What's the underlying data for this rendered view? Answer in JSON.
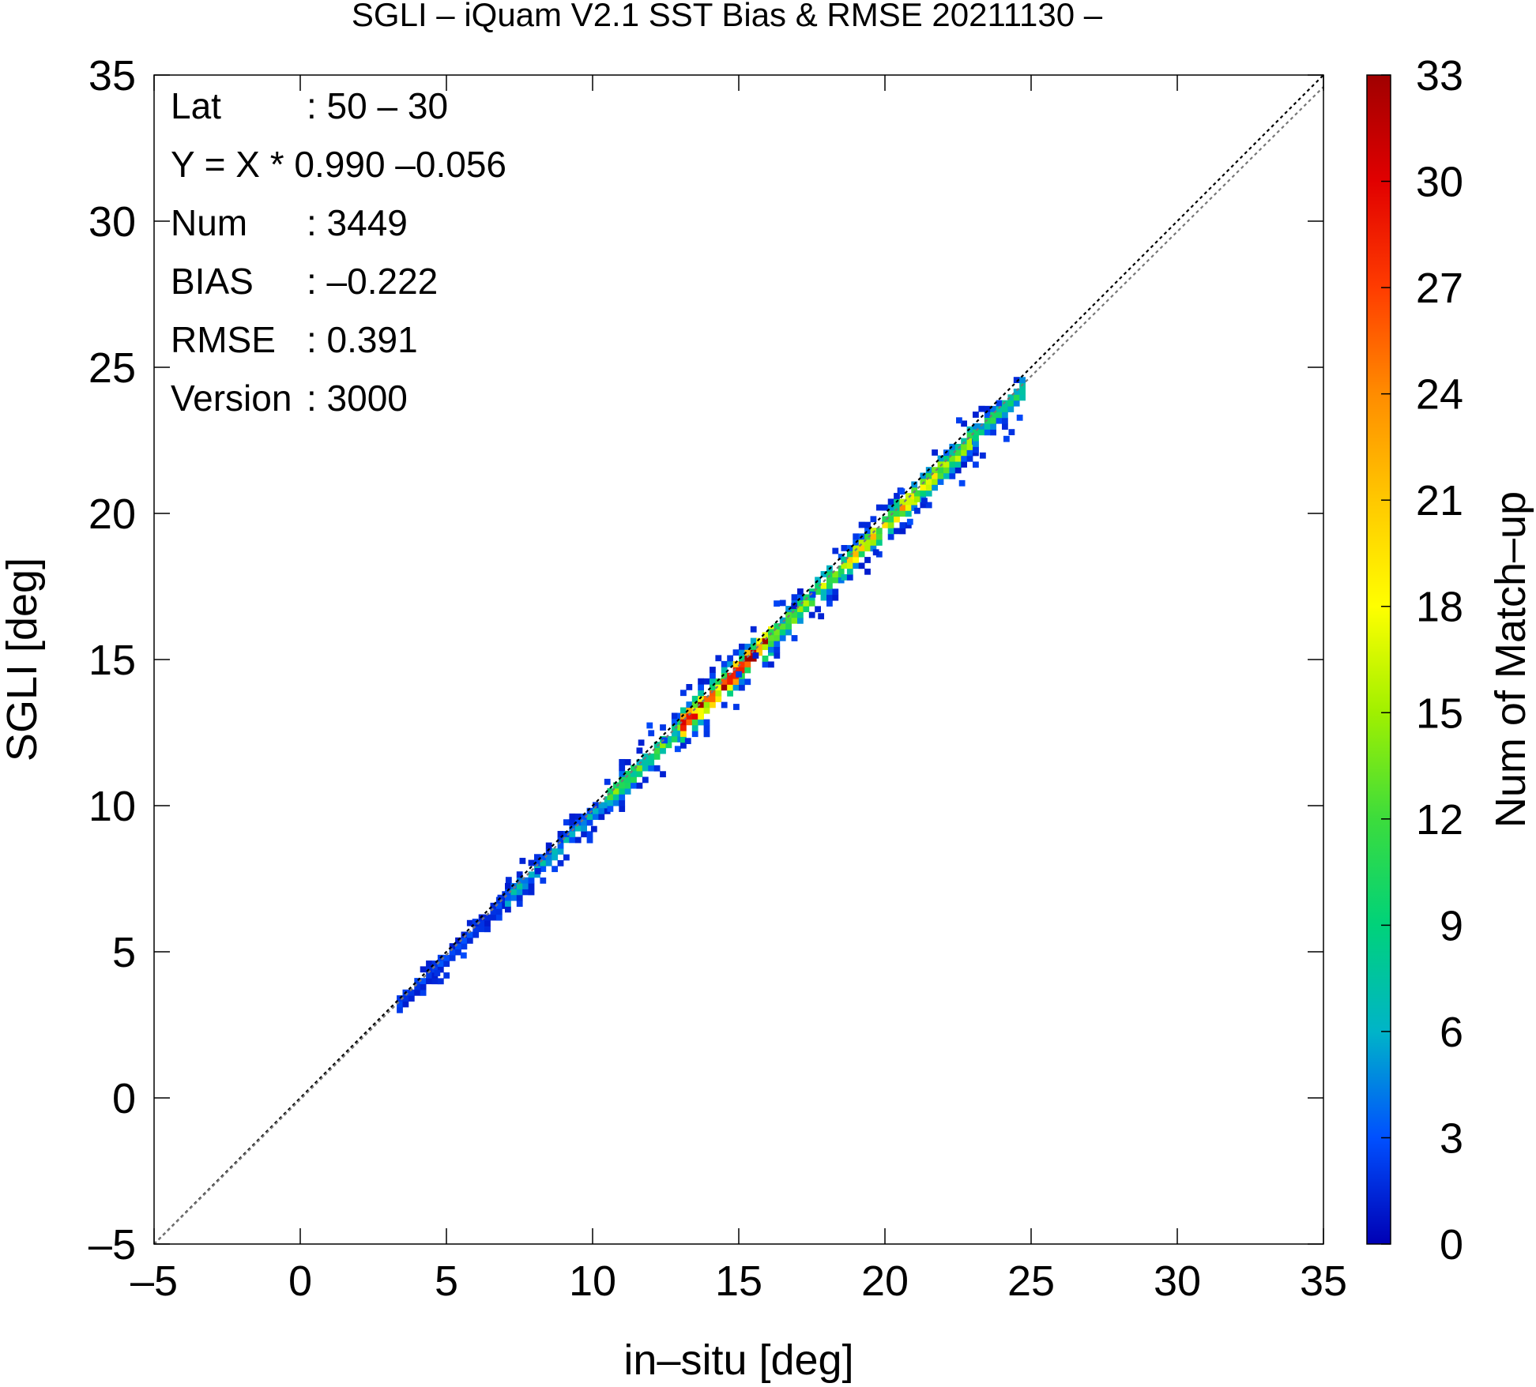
{
  "chart_data": {
    "type": "heatmap",
    "title": "SGLI – iQuam V2.1 SST Bias & RMSE 20211130 –",
    "xlabel": "in–situ [deg]",
    "ylabel": "SGLI [deg]",
    "xlim": [
      -5,
      35
    ],
    "ylim": [
      -5,
      35
    ],
    "xticks": [
      "–5",
      "0",
      "5",
      "10",
      "15",
      "20",
      "25",
      "30",
      "35"
    ],
    "yticks": [
      "–5",
      "0",
      "5",
      "10",
      "15",
      "20",
      "25",
      "30",
      "35"
    ],
    "xtick_values": [
      -5,
      0,
      5,
      10,
      15,
      20,
      25,
      30,
      35
    ],
    "ytick_values": [
      -5,
      0,
      5,
      10,
      15,
      20,
      25,
      30,
      35
    ],
    "grid": false,
    "colorbar": {
      "label": "Num of Match–up",
      "range": [
        0,
        33
      ],
      "tick_values": [
        0,
        3,
        6,
        9,
        12,
        15,
        18,
        21,
        24,
        27,
        30,
        33
      ],
      "tick_labels": [
        "0",
        "3",
        "6",
        "9",
        "12",
        "15",
        "18",
        "21",
        "24",
        "27",
        "30",
        "33"
      ],
      "colormap": [
        "#0000b4",
        "#0050ff",
        "#00b4c8",
        "#00d27a",
        "#3cdc3c",
        "#a0f000",
        "#ffff00",
        "#ffc800",
        "#ff8c00",
        "#ff3c00",
        "#e10000",
        "#a00000"
      ]
    },
    "reference_lines": [
      {
        "name": "1:1 line",
        "slope": 1.0,
        "intercept": 0.0,
        "style": "dotted",
        "color": "#000000"
      },
      {
        "name": "regression",
        "slope": 0.99,
        "intercept": -0.056,
        "style": "dotted",
        "color": "#777777"
      }
    ],
    "density_segments": [
      {
        "x0": 3.3,
        "x1": 7.0,
        "peak": 3,
        "spread": 0.25
      },
      {
        "x0": 7.0,
        "x1": 10.5,
        "peak": 7,
        "spread": 0.35
      },
      {
        "x0": 10.5,
        "x1": 13.0,
        "peak": 13,
        "spread": 0.45
      },
      {
        "x0": 13.0,
        "x1": 16.0,
        "peak": 33,
        "spread": 0.5
      },
      {
        "x0": 16.0,
        "x1": 18.5,
        "peak": 16,
        "spread": 0.45
      },
      {
        "x0": 18.5,
        "x1": 21.0,
        "peak": 21,
        "spread": 0.45
      },
      {
        "x0": 21.0,
        "x1": 23.0,
        "peak": 18,
        "spread": 0.45
      },
      {
        "x0": 23.0,
        "x1": 24.7,
        "peak": 12,
        "spread": 0.4
      }
    ]
  },
  "stats": [
    {
      "label": "Lat",
      "value": ": 50 – 30"
    },
    {
      "label": "Y = X * 0.990 –0.056",
      "value": ""
    },
    {
      "label": "Num",
      "value": ": 3449"
    },
    {
      "label": "BIAS",
      "value": ": –0.222"
    },
    {
      "label": "RMSE",
      "value": ": 0.391"
    },
    {
      "label": "Version",
      "value": ": 3000"
    }
  ]
}
